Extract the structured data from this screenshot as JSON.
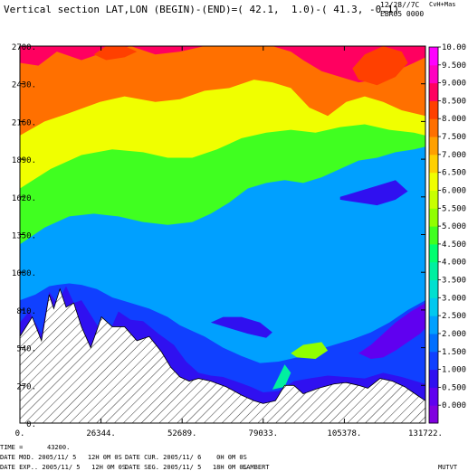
{
  "header": {
    "title": "Vertical section LAT,LON (BEGIN)-(END)=( 42.1,  1.0)-( 41.3, -0.1)",
    "run_code": "12/28//7C",
    "run_name": "EBRO5 0000",
    "tag": "CvH+Mas"
  },
  "footer": {
    "time_label": "TIME =",
    "time_value": "43200.",
    "date_mod": "DATE MOD. 2005/11/ 5   12H 0M 0S",
    "date_cur": "DATE CUR. 2005/11/ 6    0H 0M 0S",
    "date_exp": "DATE EXP.. 2005/11/ 5   12H 0M 0S",
    "date_seg": "DATE SEG. 2005/11/ 5   18H 0M 0S",
    "projection": "LAMBERT",
    "field": "MUTVT"
  },
  "chart_data": {
    "type": "heatmap",
    "title": "Vertical section LAT,LON (BEGIN)-(END)=( 42.1,  1.0)-( 41.3, -0.1)",
    "xlabel": "",
    "ylabel": "",
    "xlim": [
      0,
      131722
    ],
    "ylim": [
      0,
      2700
    ],
    "x_tick_labels": [
      "0.",
      "26344.",
      "52689.",
      "79033.",
      "105378.",
      "131722."
    ],
    "y_tick_labels": [
      "0.",
      "270.",
      "540.",
      "810.",
      "1080.",
      "1350.",
      "1620.",
      "1890.",
      "2160.",
      "2430.",
      "2700."
    ],
    "colorbar": {
      "levels": [
        "-0.500",
        "0.000",
        "0.500",
        "1.000",
        "1.500",
        "2.000",
        "2.500",
        "3.000",
        "3.500",
        "4.000",
        "4.500",
        "5.000",
        "5.500",
        "6.000",
        "6.500",
        "7.000",
        "7.500",
        "8.000",
        "8.500",
        "9.000",
        "9.500",
        "10.00"
      ],
      "colors": [
        "#8000e0",
        "#6000f0",
        "#3010f0",
        "#1040ff",
        "#0070ff",
        "#00a0ff",
        "#00c8f0",
        "#00e0d0",
        "#00f0a0",
        "#00ff70",
        "#40ff20",
        "#90ff00",
        "#c8ff00",
        "#f0ff00",
        "#ffd000",
        "#ffa000",
        "#ff7000",
        "#ff4000",
        "#ff0060",
        "#ff00c0",
        "#ff00ff"
      ]
    },
    "terrain_x": [
      0,
      4000,
      7000,
      9500,
      11000,
      13000,
      15000,
      17500,
      20000,
      23000,
      26500,
      30000,
      34000,
      38000,
      42000,
      46000,
      49000,
      52000,
      55000,
      58000,
      62000,
      67000,
      72000,
      76000,
      79000,
      83000,
      86000,
      89000,
      92000,
      97000,
      102000,
      106000,
      110000,
      113000,
      117000,
      121000,
      125000,
      129000,
      131722
    ],
    "terrain_y": [
      620,
      760,
      590,
      920,
      820,
      960,
      830,
      860,
      690,
      540,
      760,
      690,
      690,
      590,
      620,
      510,
      400,
      330,
      300,
      320,
      300,
      260,
      200,
      160,
      140,
      160,
      270,
      270,
      210,
      250,
      280,
      290,
      270,
      250,
      320,
      300,
      260,
      200,
      160
    ],
    "fields": [
      {
        "level": "1.000",
        "x": [
          0,
          3000,
          7000,
          9500,
          12000,
          15000,
          17500,
          20000,
          24000,
          28000,
          32000,
          36000,
          40000,
          45000,
          50000,
          54000,
          58000,
          62000,
          66000,
          70000,
          75000,
          79000,
          84000,
          89000,
          94000,
          100000,
          106000,
          112000,
          118000,
          124000,
          131722
        ],
        "y": [
          720,
          800,
          640,
          940,
          860,
          980,
          860,
          880,
          740,
          600,
          800,
          740,
          730,
          640,
          560,
          440,
          360,
          340,
          330,
          300,
          260,
          220,
          230,
          300,
          320,
          340,
          330,
          320,
          360,
          330,
          280
        ]
      },
      {
        "level": "2.000",
        "x": [
          0,
          5000,
          9500,
          12000,
          16000,
          20000,
          25000,
          30000,
          36000,
          42000,
          48000,
          52000,
          56000,
          60000,
          66000,
          72000,
          78000,
          84000,
          90000,
          96000,
          102000,
          108000,
          114000,
          120000,
          126000,
          131722
        ],
        "y": [
          880,
          920,
          980,
          990,
          1000,
          990,
          960,
          900,
          860,
          820,
          760,
          700,
          660,
          620,
          540,
          480,
          430,
          440,
          470,
          520,
          560,
          600,
          650,
          720,
          810,
          880
        ]
      },
      {
        "level": "4.500",
        "x": [
          0,
          8000,
          16000,
          24000,
          32000,
          40000,
          48000,
          56000,
          62000,
          68000,
          74000,
          80000,
          86000,
          92000,
          98000,
          104000,
          110000,
          116000,
          122000,
          128000,
          131722
        ],
        "y": [
          1280,
          1400,
          1480,
          1500,
          1480,
          1440,
          1420,
          1440,
          1500,
          1580,
          1680,
          1720,
          1740,
          1720,
          1760,
          1820,
          1880,
          1900,
          1940,
          1960,
          1980
        ]
      },
      {
        "level": "6.000",
        "x": [
          0,
          10000,
          20000,
          30000,
          40000,
          48000,
          56000,
          64000,
          72000,
          80000,
          88000,
          96000,
          104000,
          112000,
          120000,
          128000,
          131722
        ],
        "y": [
          1680,
          1820,
          1920,
          1960,
          1940,
          1900,
          1900,
          1960,
          2040,
          2080,
          2100,
          2080,
          2120,
          2140,
          2100,
          2080,
          2060
        ]
      },
      {
        "level": "7.500",
        "x": [
          0,
          8000,
          16000,
          26000,
          34000,
          44000,
          52000,
          60000,
          68000,
          76000,
          82000,
          88000,
          94000,
          100000,
          106000,
          112000,
          118000,
          124000,
          131722
        ],
        "y": [
          2060,
          2160,
          2220,
          2300,
          2340,
          2300,
          2320,
          2380,
          2400,
          2460,
          2440,
          2400,
          2260,
          2200,
          2300,
          2340,
          2300,
          2240,
          2200
        ]
      },
      {
        "level": "8.500",
        "x": [
          0,
          6000,
          12000,
          20000,
          28000,
          36000,
          44000,
          52000,
          60000,
          68000,
          76000,
          82000,
          88000,
          92000,
          98000,
          104000,
          110000,
          116000,
          122000,
          128000,
          131722
        ],
        "y": [
          2580,
          2560,
          2660,
          2600,
          2660,
          2700,
          2640,
          2660,
          2700,
          2700,
          2700,
          2700,
          2660,
          2600,
          2520,
          2480,
          2440,
          2460,
          2520,
          2580,
          2620
        ]
      }
    ],
    "low_patches": [
      {
        "level": "0.000",
        "x": [
          110000,
          114000,
          118000,
          122000,
          126000,
          130000,
          131722,
          131722,
          127000,
          122000,
          118000,
          114000
        ],
        "y": [
          500,
          460,
          470,
          520,
          580,
          640,
          680,
          860,
          800,
          720,
          640,
          560
        ]
      },
      {
        "level": "0.500",
        "x": [
          62000,
          66000,
          72000,
          78000,
          82000,
          80000,
          74000,
          68000
        ],
        "y": [
          720,
          760,
          760,
          720,
          650,
          610,
          640,
          680
        ]
      },
      {
        "level": "0.500",
        "x": [
          104000,
          110000,
          116000,
          122000,
          126000,
          122000,
          116000,
          110000,
          104000
        ],
        "y": [
          1620,
          1660,
          1700,
          1740,
          1660,
          1600,
          1560,
          1580,
          1600
        ]
      }
    ],
    "warm_pockets": [
      {
        "level": "8.000",
        "x": [
          108000,
          112000,
          118000,
          124000,
          126000,
          122000,
          116000,
          110000
        ],
        "y": [
          2540,
          2640,
          2700,
          2660,
          2580,
          2480,
          2420,
          2460
        ]
      },
      {
        "level": "8.000",
        "x": [
          24000,
          28000,
          34000,
          38000,
          34000,
          28000
        ],
        "y": [
          2640,
          2700,
          2700,
          2660,
          2620,
          2600
        ]
      },
      {
        "level": "5.000",
        "x": [
          88000,
          92000,
          98000,
          100000,
          96000,
          90000
        ],
        "y": [
          500,
          560,
          580,
          520,
          460,
          470
        ]
      },
      {
        "level": "3.500",
        "x": [
          82000,
          86000,
          88000,
          86000,
          84000
        ],
        "y": [
          240,
          260,
          360,
          420,
          330
        ]
      }
    ]
  }
}
